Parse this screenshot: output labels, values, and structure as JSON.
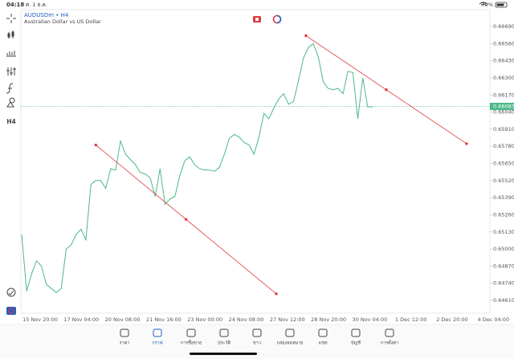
{
  "status_bar": {
    "time": "04:18",
    "date": "ศ. 1 ธ.ค.",
    "battery": "79%"
  },
  "symbol": {
    "name": "AUDUSDm • H4",
    "description": "Australian Dollar vs US Dollar"
  },
  "toolbar": {
    "timeframe": "H4"
  },
  "chart": {
    "ylim": [
      0.6461,
      0.6669
    ],
    "yticks": [
      {
        "value": 0.6669,
        "label": "0.66690"
      },
      {
        "value": 0.6656,
        "label": "0.66560"
      },
      {
        "value": 0.6643,
        "label": "0.66430"
      },
      {
        "value": 0.663,
        "label": "0.66300"
      },
      {
        "value": 0.6617,
        "label": "0.66170"
      },
      {
        "value": 0.6604,
        "label": "0.66040"
      },
      {
        "value": 0.6591,
        "label": "0.65910"
      },
      {
        "value": 0.6578,
        "label": "0.65780"
      },
      {
        "value": 0.6565,
        "label": "0.65650"
      },
      {
        "value": 0.6552,
        "label": "0.65520"
      },
      {
        "value": 0.6539,
        "label": "0.65390"
      },
      {
        "value": 0.6526,
        "label": "0.65260"
      },
      {
        "value": 0.6513,
        "label": "0.65130"
      },
      {
        "value": 0.65,
        "label": "0.65000"
      },
      {
        "value": 0.6487,
        "label": "0.64870"
      },
      {
        "value": 0.6474,
        "label": "0.64740"
      },
      {
        "value": 0.6461,
        "label": "0.64610"
      }
    ],
    "time_labels": [
      "15 Nov 20:00",
      "17 Nov 04:00",
      "20 Nov 08:00",
      "21 Nov 16:00",
      "23 Nov 00:00",
      "24 Nov 08:00",
      "27 Nov 12:00",
      "28 Nov 20:00",
      "30 Nov 04:00",
      "1 Dec 12:00",
      "2 Dec 20:00",
      "4 Dec 04:00"
    ],
    "current_price": {
      "value": 0.66083,
      "label": "0.66083"
    },
    "line_color": "#4cb88a",
    "values": [
      0.6511,
      0.6468,
      0.6481,
      0.6491,
      0.6487,
      0.6473,
      0.647,
      0.6467,
      0.647,
      0.65,
      0.6503,
      0.6511,
      0.6515,
      0.6507,
      0.6549,
      0.6552,
      0.6552,
      0.6546,
      0.6561,
      0.656,
      0.6582,
      0.6572,
      0.6568,
      0.6564,
      0.6558,
      0.6557,
      0.6554,
      0.654,
      0.6561,
      0.6534,
      0.6538,
      0.654,
      0.6556,
      0.6567,
      0.657,
      0.6564,
      0.6561,
      0.656,
      0.656,
      0.6559,
      0.6562,
      0.6572,
      0.6584,
      0.6587,
      0.6585,
      0.6581,
      0.6579,
      0.6572,
      0.6585,
      0.6603,
      0.6599,
      0.6607,
      0.6614,
      0.6618,
      0.661,
      0.6612,
      0.6628,
      0.6645,
      0.6653,
      0.6656,
      0.6646,
      0.6627,
      0.6622,
      0.6621,
      0.6622,
      0.6618,
      0.6635,
      0.6634,
      0.6599,
      0.663,
      0.6608,
      0.6608
    ],
    "trend_color": "#e0393e",
    "trendlines": [
      {
        "start": {
          "bar": 15,
          "price": 0.6579
        },
        "end": {
          "bar": 51.5,
          "price": 0.6466
        }
      },
      {
        "start": {
          "bar": 57.5,
          "price": 0.6662
        },
        "end": {
          "bar": 90,
          "price": 0.658
        }
      }
    ]
  },
  "tabs": [
    "ราคา",
    "กราฟ",
    "การซื้อขาย",
    "ประวัติ",
    "ข่าว",
    "กล่องจดหมาย",
    "แชท",
    "บัญชี",
    "การตั้งค่า"
  ],
  "active_tab": 1
}
